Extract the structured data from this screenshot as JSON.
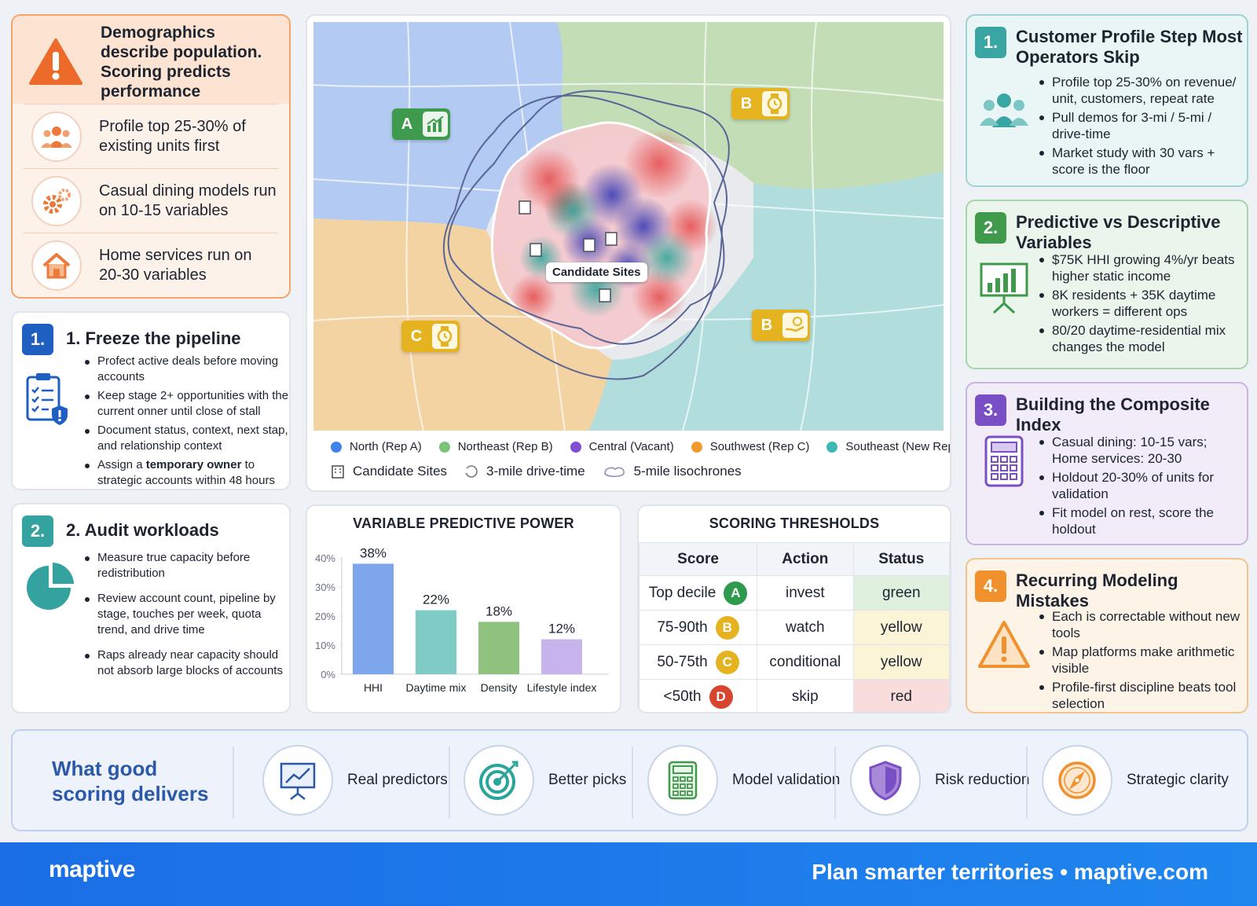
{
  "warning": {
    "title": "Demographics describe population. Scoring predicts performance",
    "items": [
      {
        "icon": "people-icon",
        "text": "Profile top 25-30% of existing units first"
      },
      {
        "icon": "gears-icon",
        "text": "Casual dining models run on 10-15 variables"
      },
      {
        "icon": "house-icon",
        "text": "Home services run on 20-30 variables"
      }
    ]
  },
  "freeze": {
    "number": "1.",
    "title": "1. Freeze the pipeline",
    "bullets": [
      "Profect active deals before moving accounts",
      "Keep stage 2+ opportunities with the current onner until close of stall",
      "Document status, context, next stap, and relationship context"
    ],
    "last_bullet_pre": "Assign a ",
    "last_bullet_bold": "temporary owner",
    "last_bullet_post": " to strategic accounts within 48 hours"
  },
  "audit": {
    "number": "2.",
    "title": "2. Audit workloads",
    "bullets": [
      "Measure true capacity before redistribution",
      "Review account count, pipeline by stage, touches per week, quota trend, and drive time",
      "Raps already near capacity should not absorb large blocks of accounts"
    ]
  },
  "map": {
    "candidate_label": "Candidate Sites",
    "badges": [
      "A",
      "B",
      "B",
      "C"
    ],
    "legend": [
      {
        "label": "North (Rep A)",
        "color": "#3f82ea"
      },
      {
        "label": "Northeast (Rep B)",
        "color": "#7cc37a"
      },
      {
        "label": "Central (Vacant)",
        "color": "#7f4fd0"
      },
      {
        "label": "Southwest (Rep C)",
        "color": "#f39a2e"
      },
      {
        "label": "Southeast (New Rep D)",
        "color": "#3fb8b4"
      }
    ],
    "legend2": [
      "Candidate Sites",
      "3-mile drive-time",
      "5-mile lisochrones"
    ]
  },
  "predictive": {
    "title": "VARIABLE PREDICTIVE POWER",
    "chart_data": {
      "type": "bar",
      "categories": [
        "HHI",
        "Daytime mix",
        "Density",
        "Lifestyle index"
      ],
      "values": [
        38,
        22,
        18,
        12
      ],
      "value_labels": [
        "38%",
        "22%",
        "18%",
        "12%"
      ],
      "ylim": [
        0,
        40
      ],
      "yticks": [
        "0%",
        "10%",
        "20%",
        "30%",
        "40%"
      ],
      "colors": [
        "#7ea6ec",
        "#7fcbc5",
        "#8ec27e",
        "#c8b4ec"
      ]
    }
  },
  "thresholds": {
    "title": "SCORING THRESHOLDS",
    "headers": [
      "Score",
      "Action",
      "Status"
    ],
    "rows": [
      {
        "score": "Top decile",
        "grade": "A",
        "gcolor": "#2e9a4e",
        "action": "invest",
        "status": "green",
        "scolor": "#dff0df"
      },
      {
        "score": "75-90th",
        "grade": "B",
        "gcolor": "#e5b320",
        "action": "watch",
        "status": "yellow",
        "scolor": "#fcf4d6"
      },
      {
        "score": "50-75th",
        "grade": "C",
        "gcolor": "#e5b320",
        "action": "conditional",
        "status": "yellow",
        "scolor": "#fcf4d6"
      },
      {
        "score": "<50th",
        "grade": "D",
        "gcolor": "#d8452f",
        "action": "skip",
        "status": "red",
        "scolor": "#f9dcdc"
      }
    ]
  },
  "right": [
    {
      "number": "1.",
      "title": "Customer Profile Step Most Operators Skip",
      "color": "#3aa6a4",
      "bullets": [
        "Profile top 25-30% on revenue/ unit, customers, repeat rate",
        "Pull demos for 3-mi / 5-mi / drive-time",
        "Market study with 30 vars + score is the floor"
      ]
    },
    {
      "number": "2.",
      "title": "Predictive vs Descriptive Variables",
      "color": "#3f9a4c",
      "bullets": [
        "$75K HHI growing 4%/yr beats higher static income",
        "8K residents + 35K daytime workers = different ops",
        "80/20 daytime-residential mix changes the model"
      ]
    },
    {
      "number": "3.",
      "title": "Building the Composite Index",
      "color": "#7a4fc6",
      "bullets": [
        "Casual dining: 10-15 vars; Home services: 20-30",
        "Holdout 20-30% of units for validation",
        "Fit model on rest, score the holdout"
      ]
    },
    {
      "number": "4.",
      "title": "Recurring Modeling Mistakes",
      "color": "#f0912d",
      "bullets": [
        "Each is correctable without new tools",
        "Map platforms make arithmetic visible",
        "Profile-first discipline beats tool selection"
      ]
    }
  ],
  "good": {
    "label": "What good scoring delivers",
    "items": [
      "Real predictors",
      "Better picks",
      "Model validation",
      "Risk reduction",
      "Strategic clarity"
    ]
  },
  "footer": {
    "logo": "maptive",
    "tagline": "Plan smarter territories  •  maptive.com"
  }
}
